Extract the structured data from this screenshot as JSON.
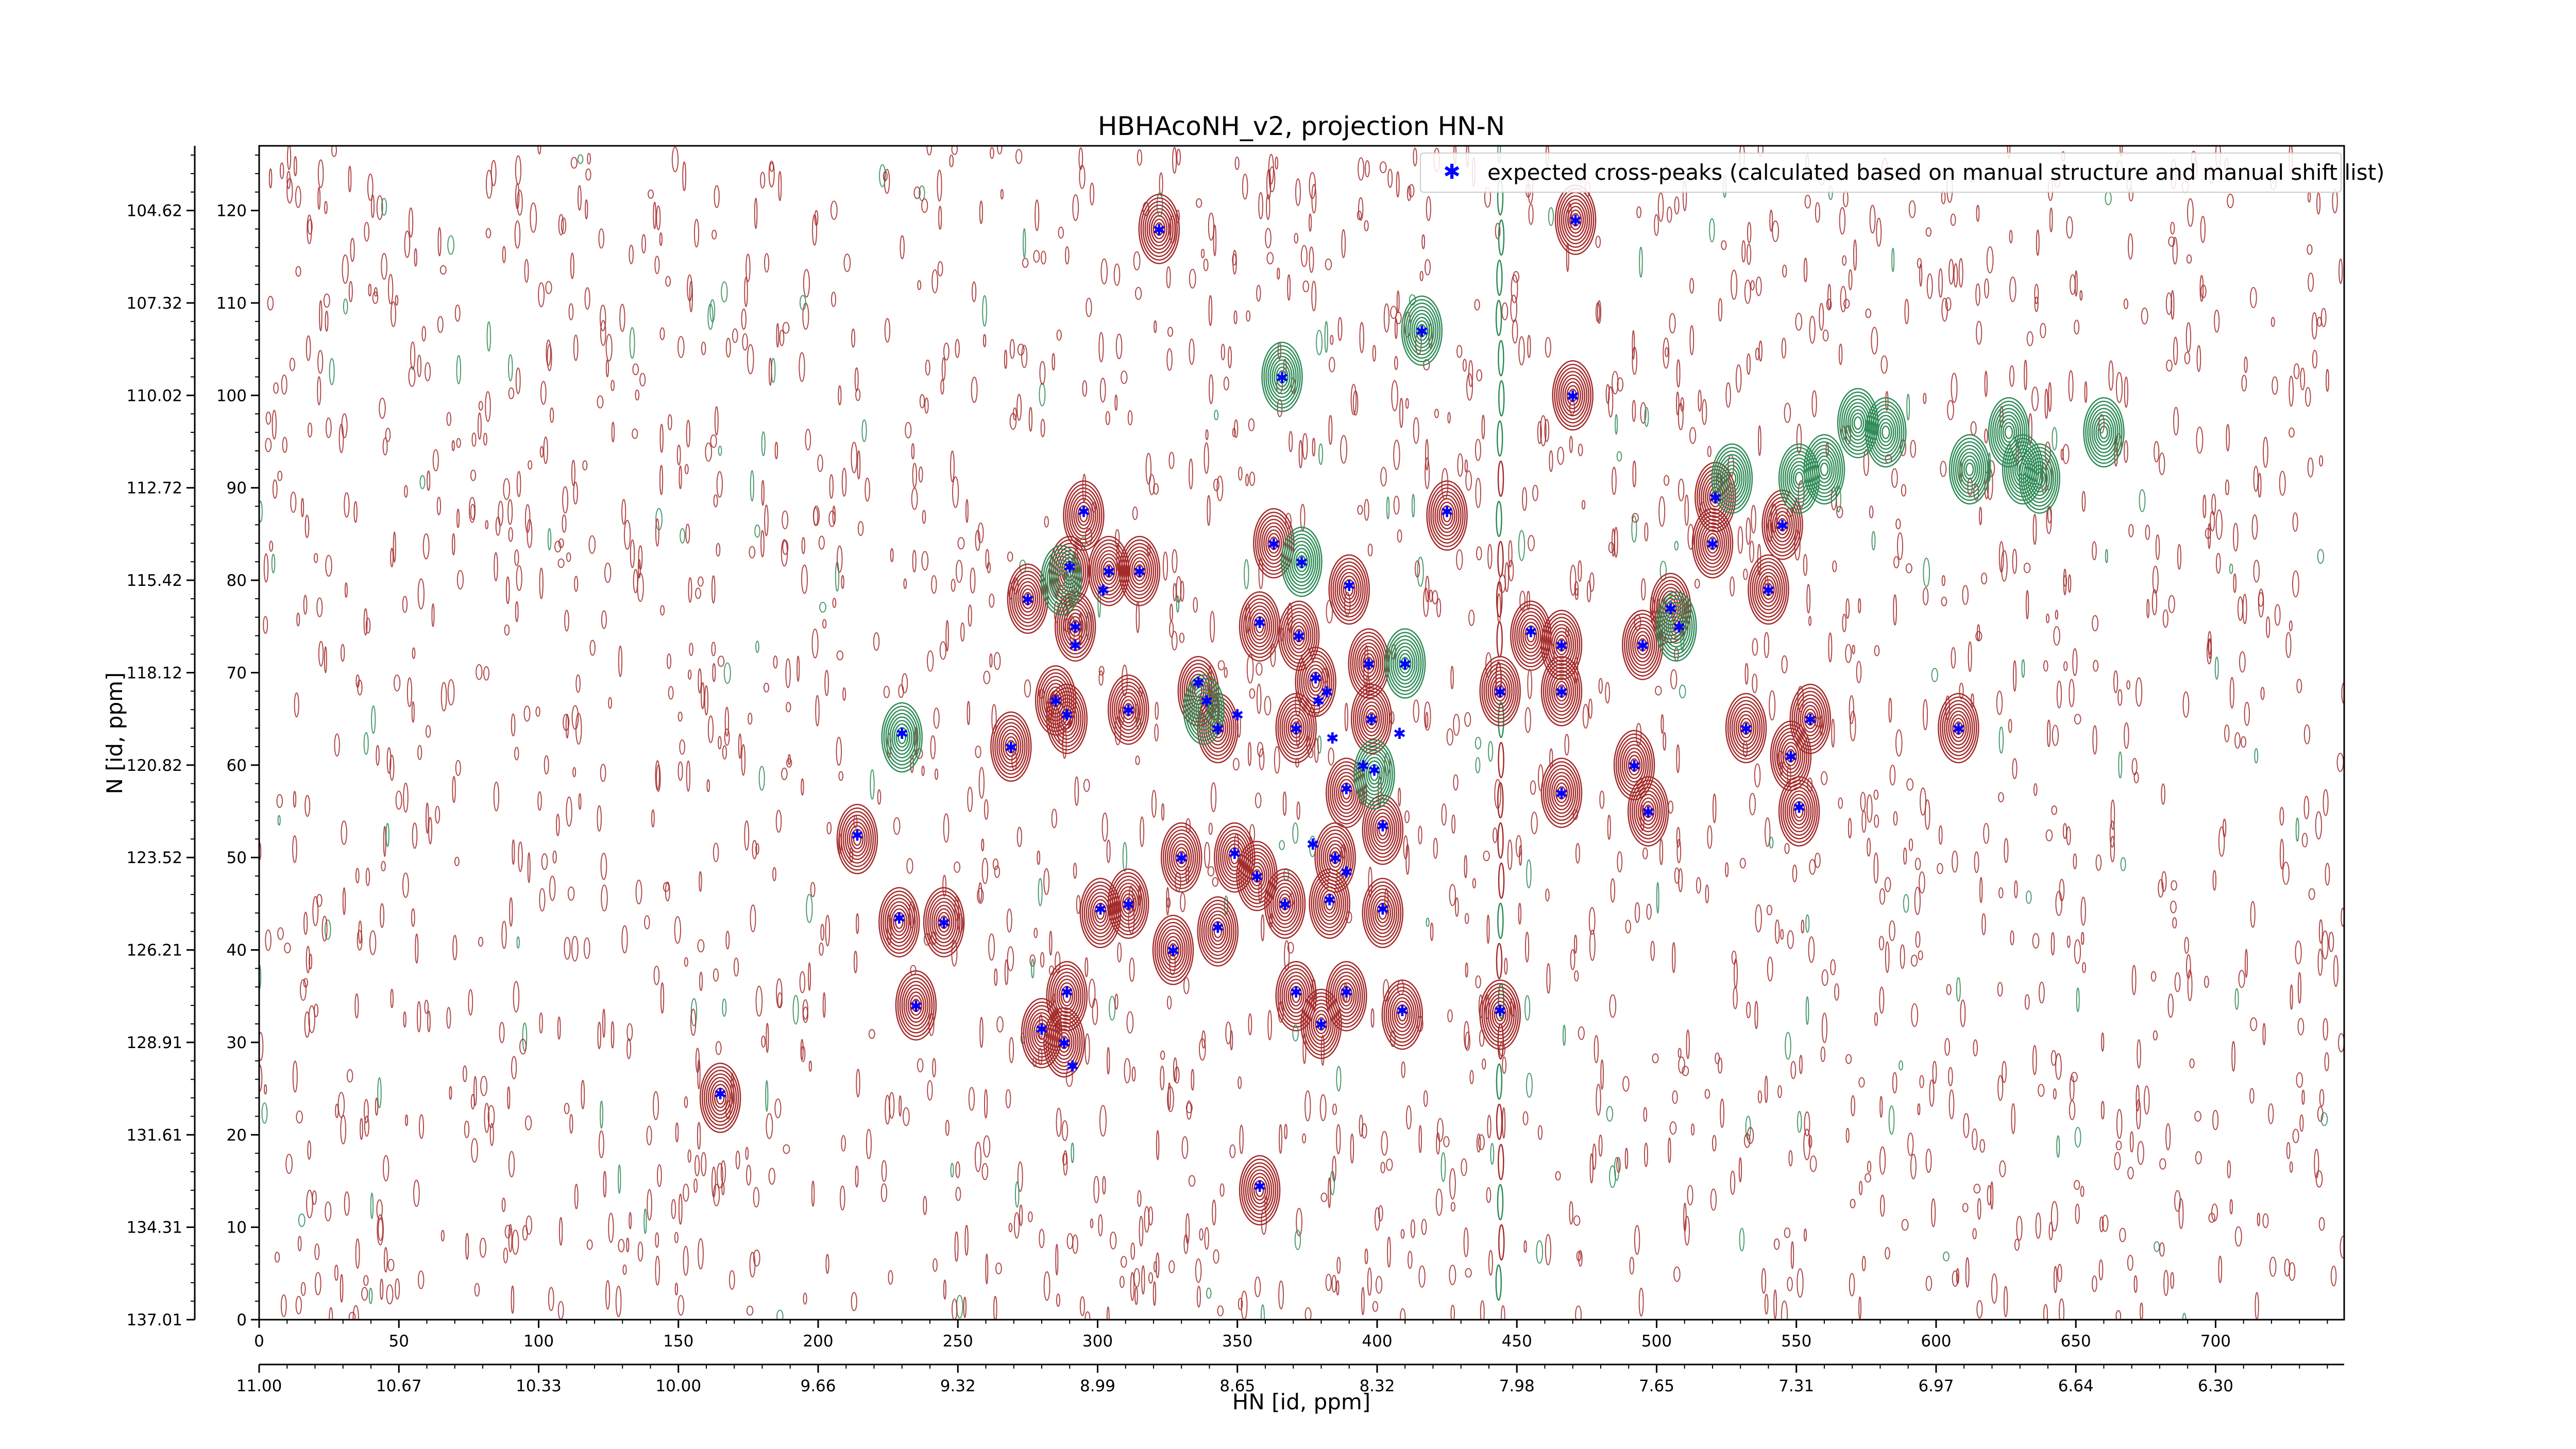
{
  "chart_data": {
    "type": "scatter",
    "title": "HBHAcoNH_v2, projection HN-N",
    "xlabel": "HN [id, ppm]",
    "ylabel": "N [id, ppm]",
    "grid": false,
    "legend_placement": "top-right",
    "x_index_axis": {
      "range": [
        0,
        746
      ],
      "ticks": [
        0,
        50,
        100,
        150,
        200,
        250,
        300,
        350,
        400,
        450,
        500,
        550,
        600,
        650,
        700
      ],
      "tick_labels": [
        "0",
        "50",
        "100",
        "150",
        "200",
        "250",
        "300",
        "350",
        "400",
        "450",
        "500",
        "550",
        "600",
        "650",
        "700"
      ]
    },
    "x_ppm_axis": {
      "ticks_index": [
        0,
        50,
        100,
        150,
        200,
        250,
        300,
        350,
        400,
        450,
        500,
        550,
        600,
        650,
        700
      ],
      "tick_labels": [
        "11.00",
        "10.67",
        "10.33",
        "10.00",
        "9.66",
        "9.32",
        "8.99",
        "8.65",
        "8.32",
        "7.98",
        "7.65",
        "7.31",
        "6.97",
        "6.64",
        "6.30"
      ]
    },
    "y_index_axis": {
      "range": [
        0,
        127
      ],
      "ticks": [
        0,
        10,
        20,
        30,
        40,
        50,
        60,
        70,
        80,
        90,
        100,
        110,
        120
      ],
      "tick_labels": [
        "0",
        "10",
        "20",
        "30",
        "40",
        "50",
        "60",
        "70",
        "80",
        "90",
        "100",
        "110",
        "120"
      ]
    },
    "y_ppm_axis": {
      "ticks_index": [
        0,
        10,
        20,
        30,
        40,
        50,
        60,
        70,
        80,
        90,
        100,
        110,
        120
      ],
      "tick_labels": [
        "137.01",
        "134.31",
        "131.61",
        "128.91",
        "126.21",
        "123.52",
        "120.82",
        "118.12",
        "115.42",
        "112.72",
        "110.02",
        "107.32",
        "104.62"
      ]
    },
    "series": [
      {
        "name": "expected cross-peaks (calculated based on manual structure and manual shift list)",
        "marker_color": "#0000ff",
        "points": [
          [
            322,
            118.0
          ],
          [
            471,
            119.0
          ],
          [
            366,
            102.0
          ],
          [
            416,
            107.0
          ],
          [
            470,
            100.0
          ],
          [
            425,
            87.5
          ],
          [
            521,
            89.0
          ],
          [
            545,
            86.0
          ],
          [
            295,
            87.5
          ],
          [
            363,
            84.0
          ],
          [
            520,
            84.0
          ],
          [
            373,
            82.0
          ],
          [
            290,
            81.5
          ],
          [
            304,
            81.0
          ],
          [
            315,
            81.0
          ],
          [
            390,
            79.5
          ],
          [
            540,
            79.0
          ],
          [
            302,
            79.0
          ],
          [
            275,
            78.0
          ],
          [
            292,
            75.0
          ],
          [
            358,
            75.5
          ],
          [
            505,
            77.0
          ],
          [
            508,
            75.0
          ],
          [
            455,
            74.5
          ],
          [
            466,
            73.0
          ],
          [
            372,
            74.0
          ],
          [
            495,
            73.0
          ],
          [
            292,
            73.0
          ],
          [
            410,
            71.0
          ],
          [
            397,
            71.0
          ],
          [
            378,
            69.5
          ],
          [
            382,
            68.0
          ],
          [
            466,
            68.0
          ],
          [
            336,
            69.0
          ],
          [
            444,
            68.0
          ],
          [
            379,
            67.0
          ],
          [
            339,
            67.0
          ],
          [
            285,
            67.0
          ],
          [
            311,
            66.0
          ],
          [
            350,
            65.5
          ],
          [
            289,
            65.5
          ],
          [
            398,
            65.0
          ],
          [
            343,
            64.0
          ],
          [
            371,
            64.0
          ],
          [
            384,
            63.0
          ],
          [
            408,
            63.5
          ],
          [
            230,
            63.5
          ],
          [
            532,
            64.0
          ],
          [
            555,
            65.0
          ],
          [
            608,
            64.0
          ],
          [
            269,
            62.0
          ],
          [
            548,
            61.0
          ],
          [
            492,
            60.0
          ],
          [
            395,
            60.0
          ],
          [
            399,
            59.5
          ],
          [
            389,
            57.5
          ],
          [
            466,
            57.0
          ],
          [
            214,
            52.5
          ],
          [
            377,
            51.5
          ],
          [
            497,
            55.0
          ],
          [
            402,
            53.5
          ],
          [
            551,
            55.5
          ],
          [
            385,
            50.0
          ],
          [
            330,
            50.0
          ],
          [
            349,
            50.5
          ],
          [
            389,
            48.5
          ],
          [
            357,
            48.0
          ],
          [
            367,
            45.0
          ],
          [
            383,
            45.5
          ],
          [
            311,
            45.0
          ],
          [
            301,
            44.5
          ],
          [
            229,
            43.5
          ],
          [
            245,
            43.0
          ],
          [
            343,
            42.5
          ],
          [
            402,
            44.5
          ],
          [
            327,
            40.0
          ],
          [
            371,
            35.5
          ],
          [
            389,
            35.5
          ],
          [
            289,
            35.5
          ],
          [
            409,
            33.5
          ],
          [
            444,
            33.5
          ],
          [
            235,
            34.0
          ],
          [
            280,
            31.5
          ],
          [
            380,
            32.0
          ],
          [
            288,
            30.0
          ],
          [
            291,
            27.5
          ],
          [
            165,
            24.5
          ],
          [
            358,
            14.5
          ]
        ]
      }
    ],
    "contours": {
      "positive_color": "#a52a2a",
      "negative_color": "#2e8b57",
      "peaks_positive": [
        [
          322,
          118
        ],
        [
          471,
          119
        ],
        [
          470,
          100
        ],
        [
          425,
          87
        ],
        [
          521,
          89
        ],
        [
          545,
          86
        ],
        [
          295,
          87
        ],
        [
          363,
          84
        ],
        [
          520,
          84
        ],
        [
          290,
          81
        ],
        [
          304,
          81
        ],
        [
          315,
          81
        ],
        [
          390,
          79
        ],
        [
          540,
          79
        ],
        [
          275,
          78
        ],
        [
          292,
          75
        ],
        [
          358,
          75
        ],
        [
          505,
          77
        ],
        [
          455,
          74
        ],
        [
          466,
          73
        ],
        [
          372,
          74
        ],
        [
          495,
          73
        ],
        [
          397,
          71
        ],
        [
          378,
          69
        ],
        [
          444,
          68
        ],
        [
          466,
          68
        ],
        [
          336,
          68
        ],
        [
          285,
          67
        ],
        [
          311,
          66
        ],
        [
          289,
          65
        ],
        [
          398,
          65
        ],
        [
          343,
          64
        ],
        [
          371,
          64
        ],
        [
          532,
          64
        ],
        [
          555,
          65
        ],
        [
          608,
          64
        ],
        [
          269,
          62
        ],
        [
          548,
          61
        ],
        [
          492,
          60
        ],
        [
          389,
          57
        ],
        [
          466,
          57
        ],
        [
          214,
          52
        ],
        [
          497,
          55
        ],
        [
          402,
          53
        ],
        [
          551,
          55
        ],
        [
          385,
          50
        ],
        [
          330,
          50
        ],
        [
          349,
          50
        ],
        [
          357,
          48
        ],
        [
          367,
          45
        ],
        [
          383,
          45
        ],
        [
          311,
          45
        ],
        [
          301,
          44
        ],
        [
          229,
          43
        ],
        [
          245,
          43
        ],
        [
          343,
          42
        ],
        [
          402,
          44
        ],
        [
          327,
          40
        ],
        [
          371,
          35
        ],
        [
          389,
          35
        ],
        [
          289,
          35
        ],
        [
          409,
          33
        ],
        [
          444,
          33
        ],
        [
          235,
          34
        ],
        [
          280,
          31
        ],
        [
          380,
          32
        ],
        [
          288,
          30
        ],
        [
          165,
          24
        ],
        [
          358,
          14
        ]
      ],
      "peaks_negative": [
        [
          366,
          102
        ],
        [
          416,
          107
        ],
        [
          373,
          82
        ],
        [
          287,
          80
        ],
        [
          410,
          71
        ],
        [
          230,
          63
        ],
        [
          399,
          59
        ],
        [
          507,
          75
        ],
        [
          338,
          66
        ],
        [
          572,
          97
        ],
        [
          582,
          96
        ],
        [
          560,
          92
        ],
        [
          551,
          91
        ],
        [
          612,
          92
        ],
        [
          626,
          96
        ],
        [
          631,
          92
        ],
        [
          637,
          91
        ],
        [
          660,
          96
        ],
        [
          527,
          91
        ]
      ]
    }
  }
}
